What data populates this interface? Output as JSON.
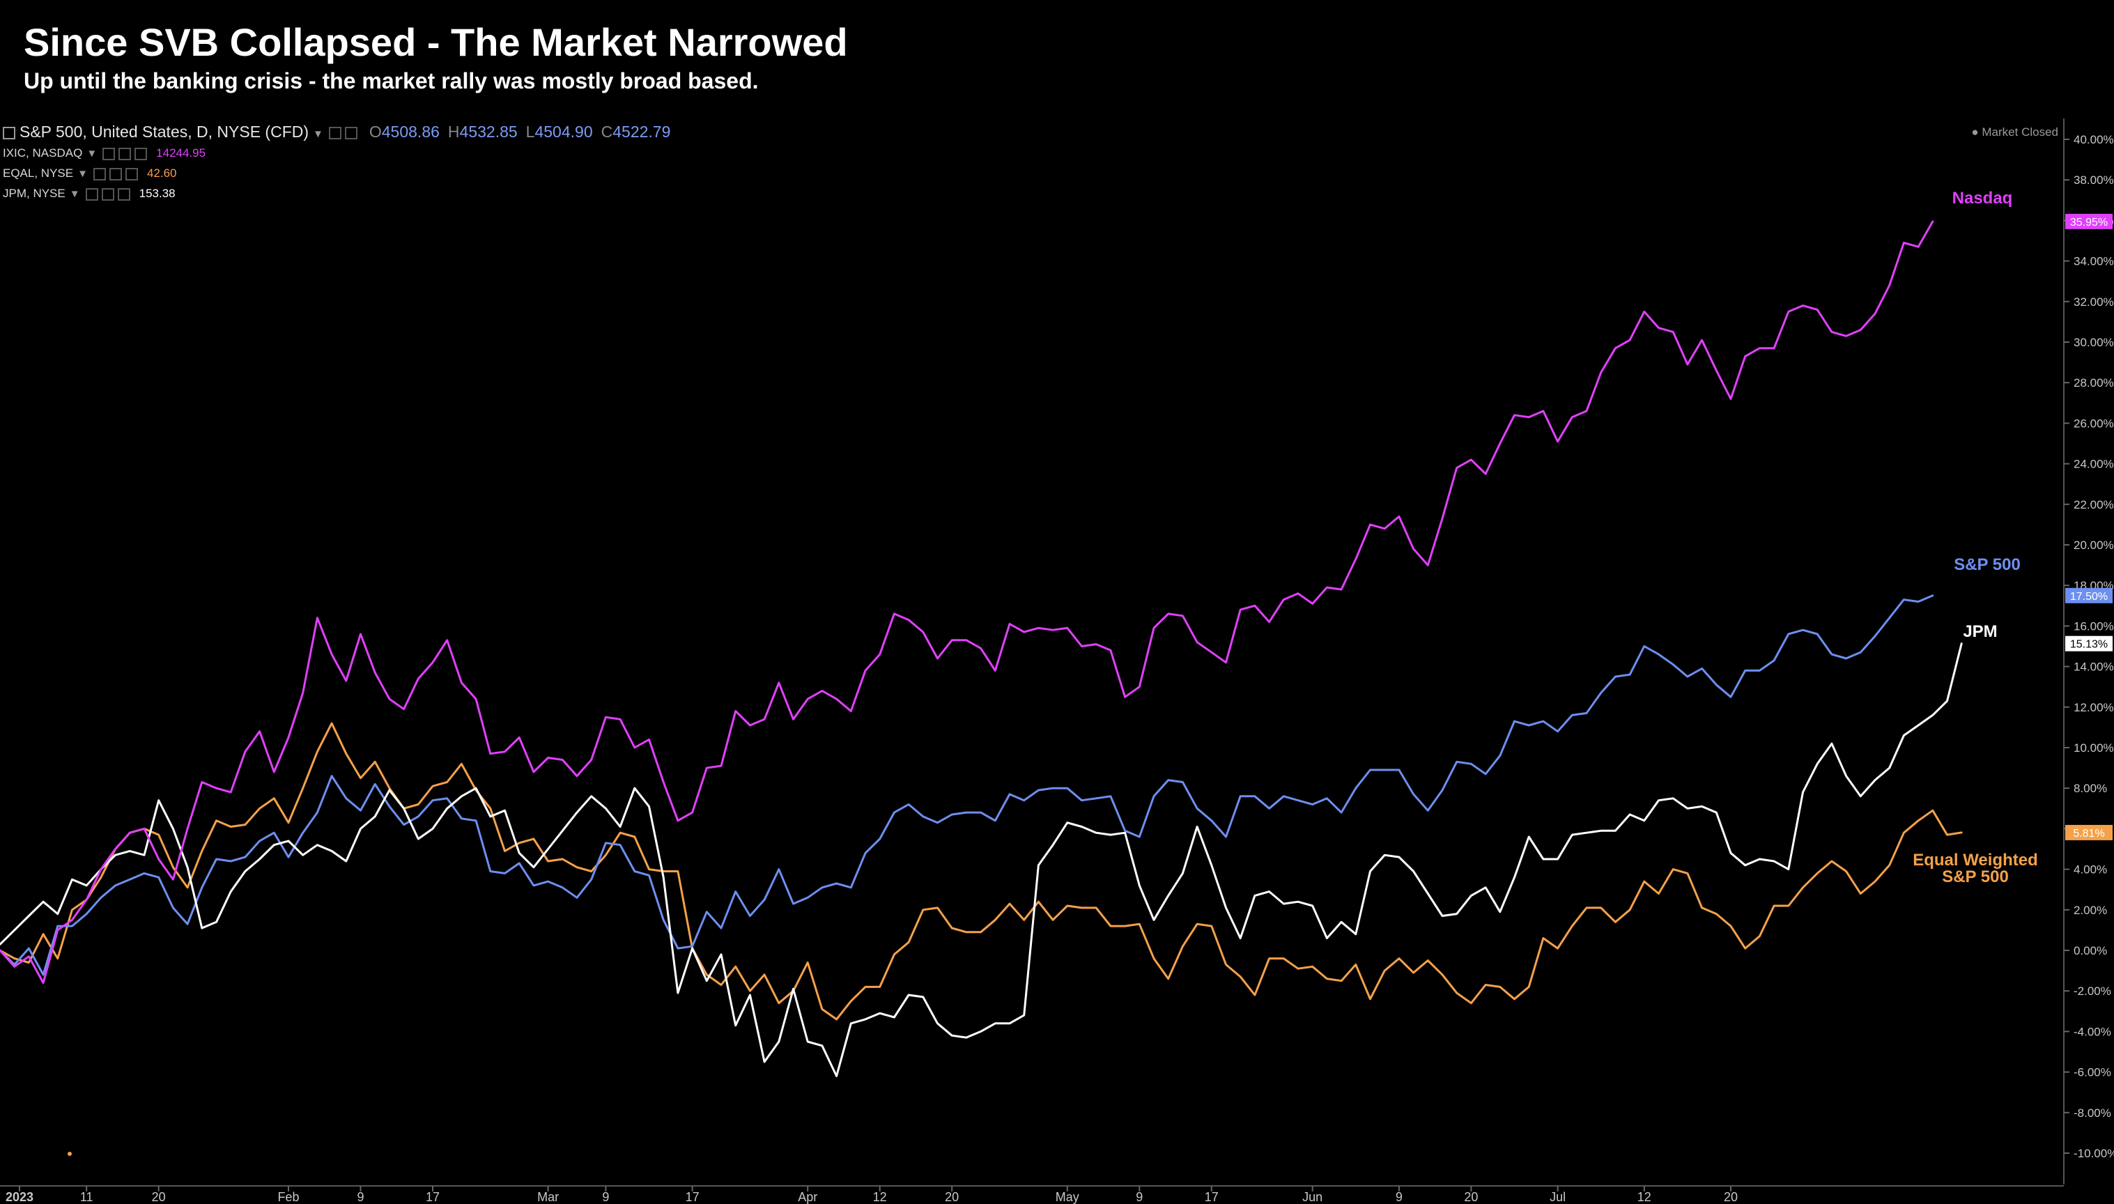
{
  "title": "Since SVB Collapsed - The Market Narrowed",
  "subtitle": "Up until the banking crisis - the market rally was mostly broad based.",
  "legend": {
    "main": {
      "symbol": "S&P 500, United States, D, NYSE (CFD)",
      "o_label": "O",
      "o": "4508.86",
      "h_label": "H",
      "h": "4532.85",
      "l_label": "L",
      "l": "4504.90",
      "c_label": "C",
      "c": "4522.79"
    },
    "rows": [
      {
        "symbol": "IXIC, NASDAQ",
        "value": "14244.95",
        "color": "#e040fb"
      },
      {
        "symbol": "EQAL, NYSE",
        "value": "42.60",
        "color": "#f5a14a"
      },
      {
        "symbol": "JPM, NYSE",
        "value": "153.38",
        "color": "#ffffff"
      }
    ]
  },
  "status": "● Market Closed",
  "colors": {
    "nasdaq": "#e040fb",
    "sp500": "#6d8ff0",
    "jpm": "#ffffff",
    "equal": "#f5a14a",
    "background": "#000000",
    "axis_text": "#c8c8c8"
  },
  "chart_data": {
    "type": "line",
    "title": "Since SVB Collapsed - The Market Narrowed",
    "ylabel": "",
    "y_unit": "%",
    "ylim": [
      -11.5,
      41.5
    ],
    "yticks": [
      40,
      38,
      36,
      34,
      32,
      30,
      28,
      26,
      24,
      22,
      20,
      18,
      16,
      14,
      12,
      10,
      8,
      6,
      4,
      2,
      0,
      -2,
      -4,
      -6,
      -8,
      -10
    ],
    "xlim": [
      -1.5,
      133
    ],
    "x_tick_positions": [
      0,
      6,
      11,
      20,
      25,
      30,
      38,
      42,
      48,
      56,
      61,
      66,
      74,
      79,
      84,
      91,
      97,
      102,
      108,
      114,
      120,
      125,
      130
    ],
    "x_tick_labels": [
      "2023",
      "11",
      "20",
      "Feb",
      "9",
      "17",
      "Mar",
      "9",
      "17",
      "Apr",
      "12",
      "20",
      "May",
      "9",
      "17",
      "Jun",
      "9",
      "20",
      "Jul",
      "12",
      "20",
      "",
      ""
    ],
    "x_labels_shown": [
      "2023",
      "11",
      "20",
      "Feb",
      "9",
      "17",
      "Mar",
      "9",
      "17",
      "Apr",
      "12",
      "20",
      "May",
      "9",
      "17",
      "Jun",
      "9",
      "20",
      "Jul",
      "12",
      "20"
    ],
    "grid": false,
    "series": [
      {
        "name": "Nasdaq",
        "key": "nasdaq",
        "label": "Nasdaq",
        "last_value_badge": "35.95%",
        "values": [
          0,
          -0.8,
          -0.3,
          -1.6,
          1.0,
          1.5,
          2.5,
          4.0,
          5.0,
          5.8,
          6.0,
          4.5,
          3.5,
          6.0,
          8.3,
          8.0,
          7.8,
          9.8,
          10.8,
          8.8,
          10.5,
          12.7,
          16.4,
          14.6,
          13.3,
          15.6,
          13.7,
          12.4,
          11.9,
          13.4,
          14.2,
          15.3,
          13.2,
          12.4,
          9.7,
          9.8,
          10.5,
          8.8,
          9.5,
          9.4,
          8.6,
          9.4,
          11.5,
          11.4,
          10.0,
          10.4,
          8.3,
          6.4,
          6.8,
          9.0,
          9.1,
          11.8,
          11.1,
          11.4,
          13.2,
          11.4,
          12.4,
          12.8,
          12.4,
          11.8,
          13.8,
          14.6,
          16.6,
          16.3,
          15.7,
          14.4,
          15.3,
          15.3,
          14.9,
          13.8,
          16.1,
          15.7,
          15.9,
          15.8,
          15.9,
          15.0,
          15.1,
          14.8,
          12.5,
          13.0,
          15.9,
          16.6,
          16.5,
          15.2,
          14.7,
          14.2,
          16.8,
          17.0,
          16.2,
          17.3,
          17.6,
          17.1,
          17.9,
          17.8,
          19.3,
          21.0,
          20.8,
          21.4,
          19.8,
          19.0,
          21.3,
          23.8,
          24.2,
          23.5,
          25.0,
          26.4,
          26.3,
          26.6,
          25.1,
          26.3,
          26.6,
          28.5,
          29.7,
          30.1,
          31.5,
          30.7,
          30.5,
          28.9,
          30.1,
          28.6,
          27.2,
          29.3,
          29.7,
          29.7,
          31.5,
          31.8,
          31.6,
          30.5,
          30.3,
          30.6,
          31.4,
          32.8,
          34.9,
          34.7,
          35.95
        ]
      },
      {
        "name": "S&P 500",
        "key": "sp500",
        "label": "S&P 500",
        "last_value_badge": "17.50%",
        "values": [
          0,
          -0.7,
          0.1,
          -1.2,
          1.2,
          1.2,
          1.8,
          2.6,
          3.2,
          3.5,
          3.8,
          3.6,
          2.1,
          1.3,
          3.1,
          4.5,
          4.4,
          4.6,
          5.4,
          5.8,
          4.6,
          5.8,
          6.8,
          8.6,
          7.5,
          6.9,
          8.2,
          7.1,
          6.2,
          6.6,
          7.4,
          7.5,
          6.5,
          6.4,
          3.9,
          3.8,
          4.3,
          3.2,
          3.4,
          3.1,
          2.6,
          3.5,
          5.3,
          5.2,
          3.9,
          3.7,
          1.5,
          0.1,
          0.2,
          1.9,
          1.1,
          2.9,
          1.7,
          2.5,
          4.0,
          2.3,
          2.6,
          3.1,
          3.3,
          3.1,
          4.8,
          5.5,
          6.8,
          7.2,
          6.6,
          6.3,
          6.7,
          6.8,
          6.8,
          6.4,
          7.7,
          7.4,
          7.9,
          8.0,
          8.0,
          7.4,
          7.5,
          7.6,
          5.9,
          5.6,
          7.6,
          8.4,
          8.3,
          7.0,
          6.4,
          5.6,
          7.6,
          7.6,
          7.0,
          7.6,
          7.4,
          7.2,
          7.5,
          6.8,
          8.0,
          8.9,
          8.9,
          8.9,
          7.7,
          6.9,
          7.9,
          9.3,
          9.2,
          8.7,
          9.6,
          11.3,
          11.1,
          11.3,
          10.8,
          11.6,
          11.7,
          12.7,
          13.5,
          13.6,
          15.0,
          14.6,
          14.1,
          13.5,
          13.9,
          13.1,
          12.5,
          13.8,
          13.8,
          14.3,
          15.6,
          15.8,
          15.6,
          14.6,
          14.4,
          14.7,
          15.5,
          16.4,
          17.3,
          17.2,
          17.5
        ]
      },
      {
        "name": "JPM",
        "key": "jpm",
        "label": "JPM",
        "last_value_badge": "15.13%",
        "values": [
          0.3,
          1.0,
          1.7,
          2.4,
          1.8,
          3.5,
          3.2,
          4.0,
          4.7,
          4.9,
          4.7,
          7.4,
          6.0,
          4.1,
          1.1,
          1.4,
          2.9,
          3.9,
          4.5,
          5.2,
          5.4,
          4.7,
          5.2,
          4.9,
          4.4,
          6.0,
          6.6,
          7.9,
          7.0,
          5.5,
          6.0,
          7.0,
          7.6,
          8.0,
          6.6,
          6.9,
          4.8,
          4.1,
          5.0,
          5.9,
          6.8,
          7.6,
          7.0,
          6.1,
          8.0,
          7.1,
          3.6,
          -2.1,
          0.1,
          -1.5,
          -0.2,
          -3.7,
          -2.2,
          -5.5,
          -4.5,
          -1.9,
          -4.5,
          -4.7,
          -6.2,
          -3.6,
          -3.4,
          -3.1,
          -3.3,
          -2.2,
          -2.3,
          -3.6,
          -4.2,
          -4.3,
          -4.0,
          -3.6,
          -3.6,
          -3.2,
          4.2,
          5.2,
          6.3,
          6.1,
          5.8,
          5.7,
          5.8,
          3.2,
          1.5,
          2.7,
          3.8,
          6.1,
          4.2,
          2.1,
          0.6,
          2.7,
          2.9,
          2.3,
          2.4,
          2.2,
          0.6,
          1.4,
          0.8,
          3.9,
          4.7,
          4.6,
          3.9,
          2.8,
          1.7,
          1.8,
          2.7,
          3.1,
          1.9,
          3.6,
          5.6,
          4.5,
          4.5,
          5.7,
          5.8,
          5.9,
          5.9,
          6.7,
          6.4,
          7.4,
          7.5,
          7.0,
          7.1,
          6.8,
          4.8,
          4.2,
          4.5,
          4.4,
          4.0,
          7.8,
          9.2,
          10.2,
          8.6,
          7.6,
          8.4,
          9.0,
          10.6,
          11.1,
          11.6,
          12.3,
          15.13
        ]
      },
      {
        "name": "Equal Weighted S&P 500",
        "key": "equal",
        "label": "Equal Weighted S&P 500",
        "last_value_badge": "5.81%",
        "values": [
          0,
          -0.4,
          -0.6,
          0.8,
          -0.4,
          2.0,
          2.5,
          3.6,
          5.0,
          5.8,
          6.0,
          5.7,
          4.1,
          3.1,
          4.9,
          6.4,
          6.1,
          6.2,
          7.0,
          7.5,
          6.3,
          8.0,
          9.8,
          11.2,
          9.7,
          8.5,
          9.3,
          8.0,
          7.0,
          7.2,
          8.1,
          8.3,
          9.2,
          7.9,
          7.0,
          4.9,
          5.3,
          5.5,
          4.4,
          4.5,
          4.1,
          3.9,
          4.7,
          5.8,
          5.6,
          4.0,
          3.9,
          3.9,
          0.1,
          -1.2,
          -1.7,
          -0.8,
          -2.0,
          -1.2,
          -2.6,
          -2.0,
          -0.6,
          -2.9,
          -3.4,
          -2.5,
          -1.8,
          -1.8,
          -0.2,
          0.4,
          2.0,
          2.1,
          1.1,
          0.9,
          0.9,
          1.5,
          2.3,
          1.5,
          2.4,
          1.5,
          2.2,
          2.1,
          2.1,
          1.2,
          1.2,
          1.3,
          -0.4,
          -1.4,
          0.2,
          1.3,
          1.2,
          -0.7,
          -1.3,
          -2.2,
          -0.4,
          -0.4,
          -0.9,
          -0.8,
          -1.4,
          -1.5,
          -0.7,
          -2.4,
          -1.0,
          -0.4,
          -1.1,
          -0.5,
          -1.2,
          -2.1,
          -2.6,
          -1.7,
          -1.8,
          -2.4,
          -1.8,
          0.6,
          0.1,
          1.2,
          2.1,
          2.1,
          1.4,
          2.0,
          3.4,
          2.8,
          4.0,
          3.8,
          2.1,
          1.8,
          1.2,
          0.1,
          0.7,
          2.2,
          2.2,
          3.1,
          3.8,
          4.4,
          3.9,
          2.8,
          3.4,
          4.2,
          5.8,
          6.4,
          6.9,
          5.7,
          5.81
        ]
      }
    ]
  }
}
